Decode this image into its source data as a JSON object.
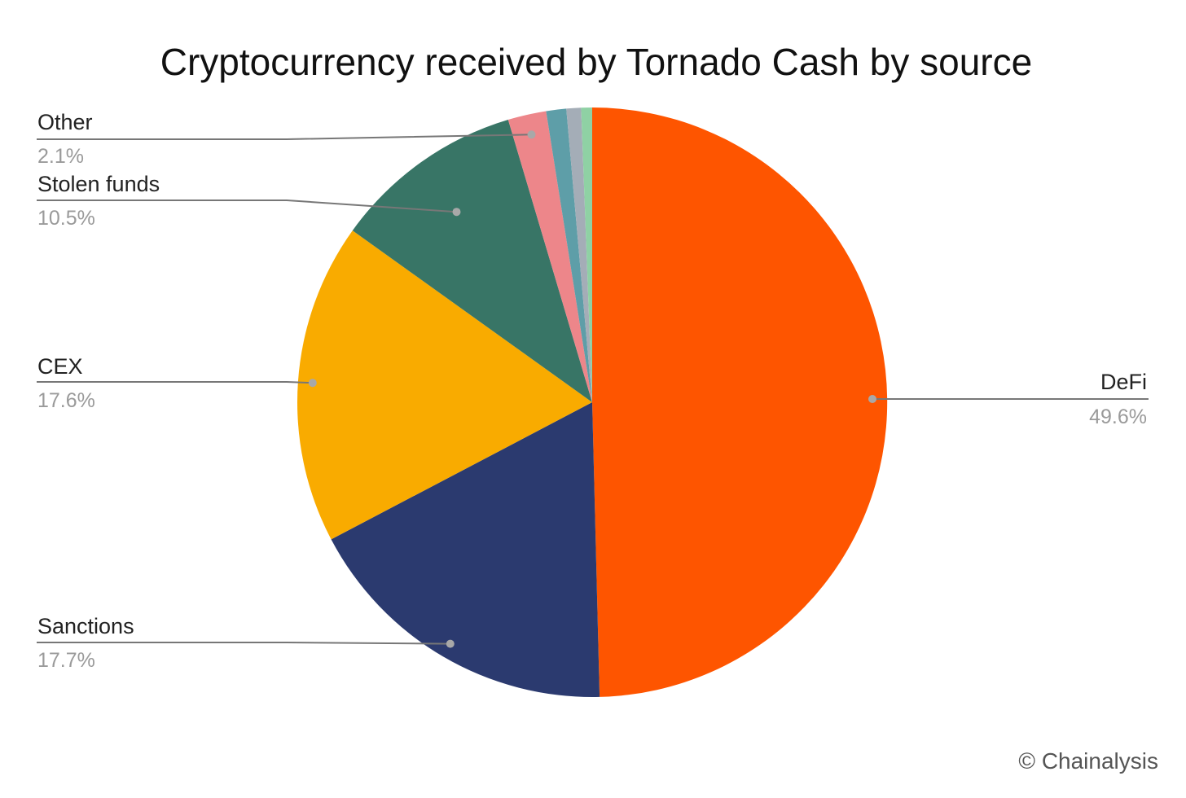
{
  "chart_data": {
    "type": "pie",
    "title": "Cryptocurrency received by Tornado Cash by source",
    "start_angle_deg": 0,
    "direction": "clockwise",
    "slices": [
      {
        "key": "defi",
        "label": "DeFi",
        "pct_label": "49.6%",
        "value": 49.6,
        "color": "#fe5500"
      },
      {
        "key": "sanctions",
        "label": "Sanctions",
        "pct_label": "17.7%",
        "value": 17.7,
        "color": "#2b3a6f"
      },
      {
        "key": "cex",
        "label": "CEX",
        "pct_label": "17.6%",
        "value": 17.6,
        "color": "#f9ab00"
      },
      {
        "key": "stolen",
        "label": "Stolen funds",
        "pct_label": "10.5%",
        "value": 10.5,
        "color": "#387566"
      },
      {
        "key": "other",
        "label": "Other",
        "pct_label": "2.1%",
        "value": 2.1,
        "color": "#ed868a"
      },
      {
        "key": "minor1",
        "label": "",
        "pct_label": "",
        "value": 1.1,
        "color": "#5e9ea8"
      },
      {
        "key": "minor2",
        "label": "",
        "pct_label": "",
        "value": 0.8,
        "color": "#a4adb7"
      },
      {
        "key": "minor3",
        "label": "",
        "pct_label": "",
        "value": 0.6,
        "color": "#8fd1a4"
      }
    ]
  },
  "footer": {
    "copyright": "© Chainalysis"
  }
}
